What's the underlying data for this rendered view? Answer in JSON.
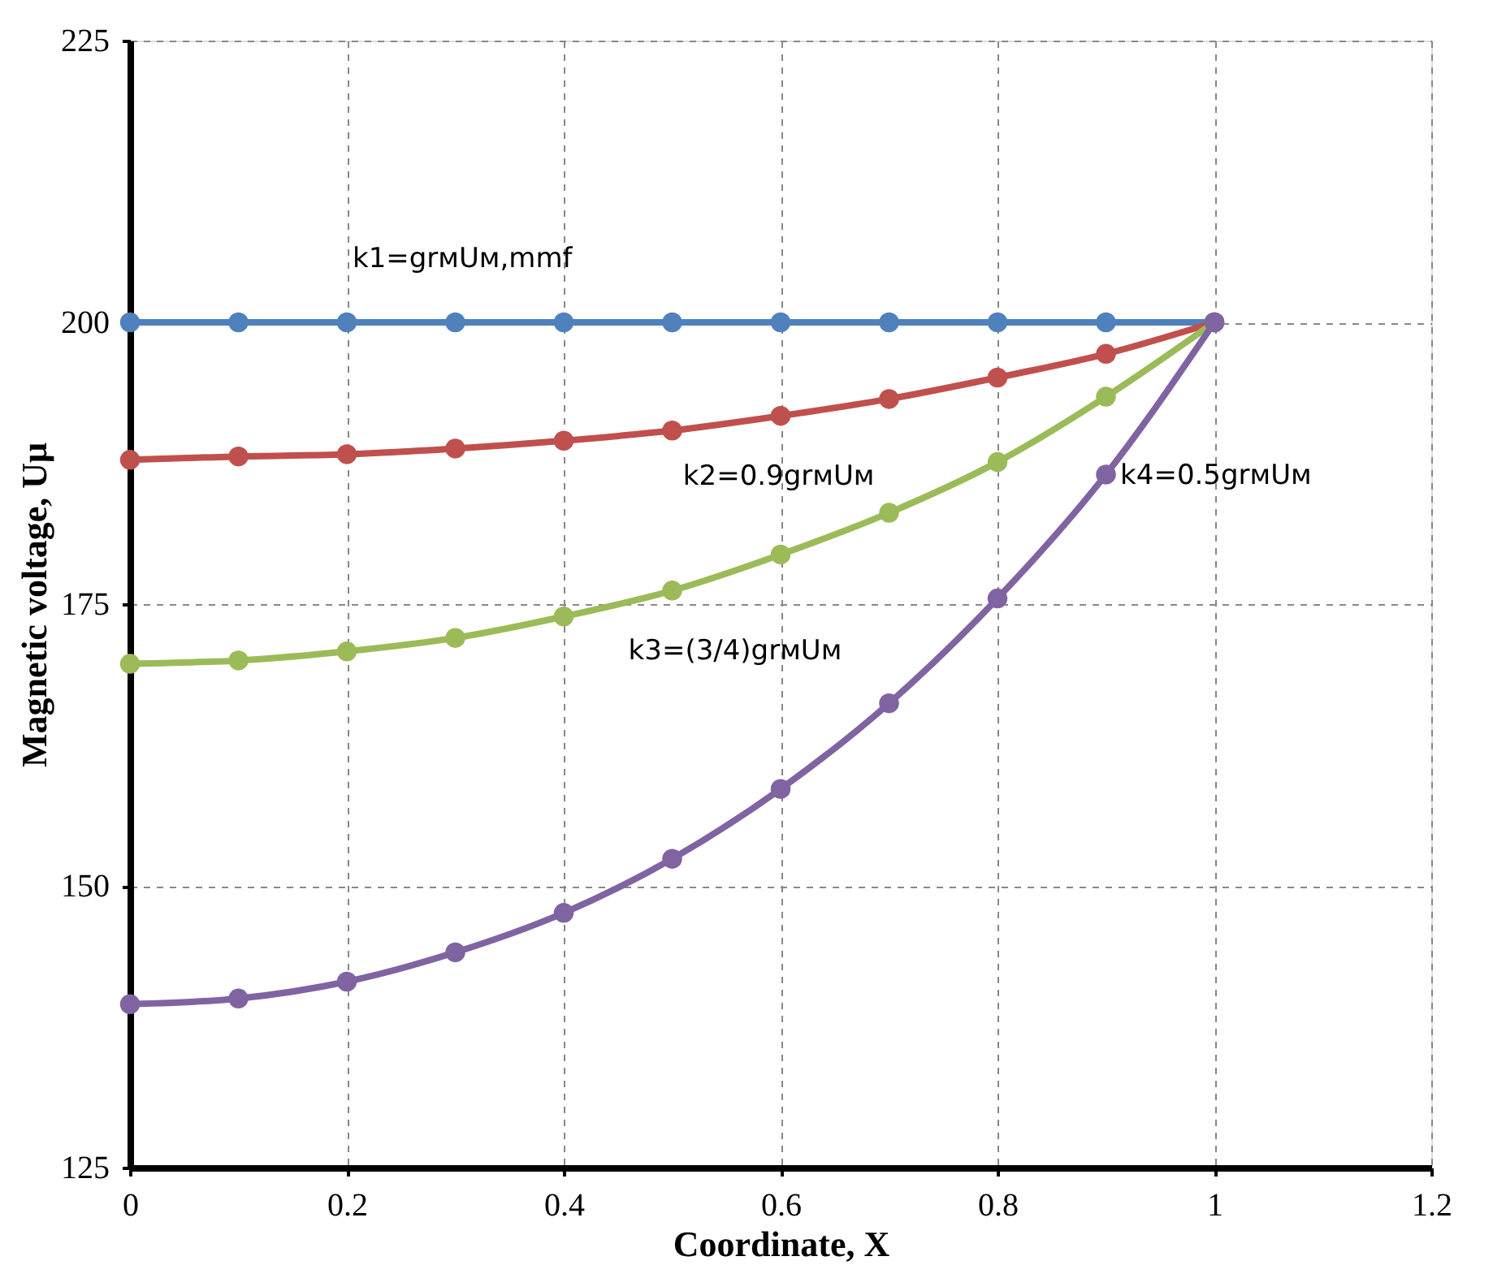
{
  "chart_data": {
    "type": "line",
    "xlabel": "Coordinate, X",
    "ylabel": "Magnetic voltage, Uμ",
    "x": [
      0,
      0.1,
      0.2,
      0.3,
      0.4,
      0.5,
      0.6,
      0.7,
      0.8,
      0.9,
      1
    ],
    "series": [
      {
        "color": "#4f81bd",
        "values": [
          200,
          200,
          200,
          200,
          200,
          200,
          200,
          200,
          200,
          200,
          200
        ]
      },
      {
        "color": "#c0504d",
        "values": [
          187.8,
          188.1,
          188.3,
          188.8,
          189.5,
          190.4,
          191.7,
          193.2,
          195.1,
          197.2,
          200
        ]
      },
      {
        "color": "#9bbb59",
        "values": [
          169.7,
          170.0,
          170.8,
          172.0,
          173.9,
          176.2,
          179.4,
          183.1,
          187.6,
          193.4,
          200
        ]
      },
      {
        "color": "#8064a2",
        "values": [
          139.5,
          140.0,
          141.5,
          144.1,
          147.6,
          152.4,
          158.6,
          166.2,
          175.5,
          186.5,
          200
        ]
      }
    ],
    "annotations": [
      "k1=grмUм,mmf",
      "k2=0.9grмUм",
      "k3=(3/4)grмUм",
      "k4=0.5grмUм"
    ],
    "xlim": [
      0,
      1.2
    ],
    "xticks": [
      0,
      0.2,
      0.4,
      0.6,
      0.8,
      1,
      1.2
    ],
    "ylim": [
      125,
      225
    ],
    "yticks": [
      125,
      150,
      175,
      200,
      225
    ],
    "grid": true,
    "marker": "circle",
    "line_style": "solid",
    "legend": false
  }
}
